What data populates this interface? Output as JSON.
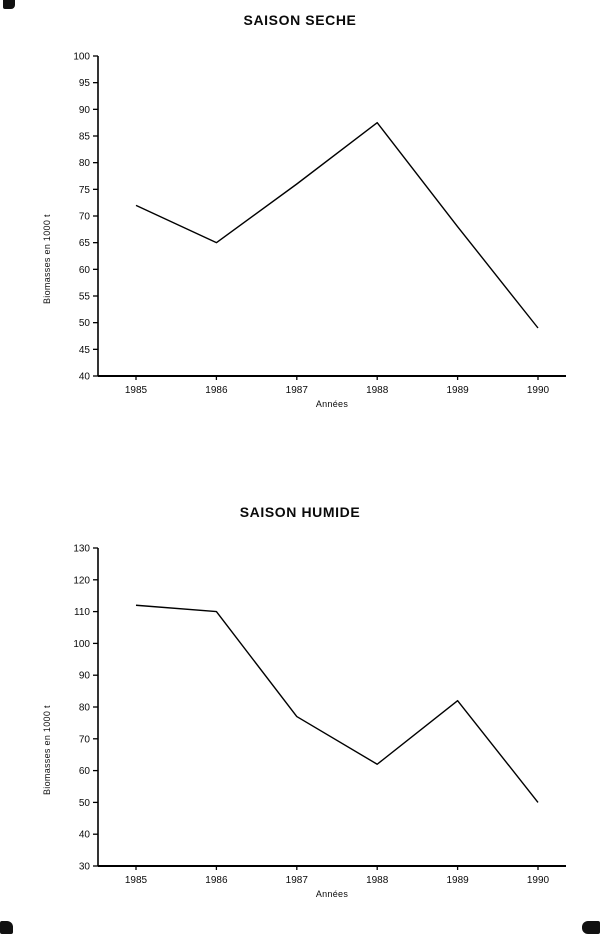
{
  "page": {
    "background": "#ffffff",
    "ink": "#000000"
  },
  "chart_data": [
    {
      "type": "line",
      "title": "SAISON SECHE",
      "xlabel": "Années",
      "ylabel": "Biomasses en 1000 t",
      "categories": [
        "1985",
        "1986",
        "1987",
        "1988",
        "1989",
        "1990"
      ],
      "series": [
        {
          "name": "Biomasses en 1000 t",
          "values": [
            72,
            65,
            76,
            87.5,
            68,
            49
          ]
        }
      ],
      "ylim": [
        40,
        100
      ],
      "ytick_step": 5,
      "grid": false,
      "legend": "none",
      "line_color": "#000000"
    },
    {
      "type": "line",
      "title": "SAISON HUMIDE",
      "xlabel": "Années",
      "ylabel": "Biomasses en 1000 t",
      "categories": [
        "1985",
        "1986",
        "1987",
        "1988",
        "1989",
        "1990"
      ],
      "series": [
        {
          "name": "Biomasses en 1000 t",
          "values": [
            112,
            110,
            77,
            62,
            82,
            50
          ]
        }
      ],
      "ylim": [
        30,
        130
      ],
      "ytick_step": 10,
      "grid": false,
      "legend": "none",
      "line_color": "#000000"
    }
  ]
}
